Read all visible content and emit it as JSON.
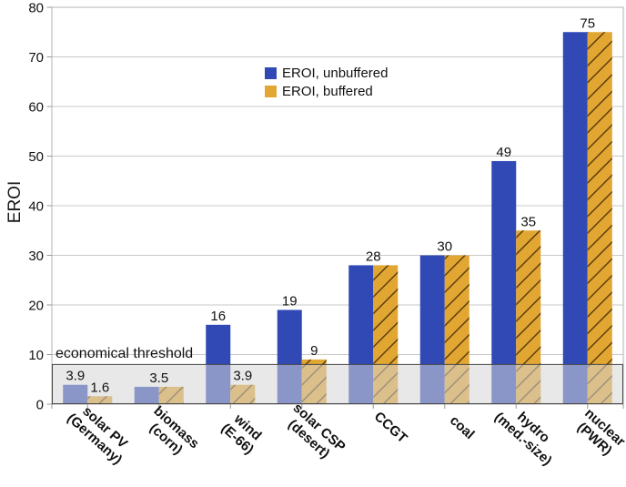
{
  "chart_data": {
    "type": "bar",
    "ylabel": "EROI",
    "ylim": [
      0,
      80
    ],
    "ytick_step": 10,
    "grid": true,
    "categories": [
      {
        "label_lines": [
          "solar PV",
          "(Germany)"
        ]
      },
      {
        "label_lines": [
          "biomass",
          "(corn)"
        ]
      },
      {
        "label_lines": [
          "wind",
          "(E-66)"
        ]
      },
      {
        "label_lines": [
          "solar CSP",
          "(desert)"
        ]
      },
      {
        "label_lines": [
          "CCGT"
        ]
      },
      {
        "label_lines": [
          "coal"
        ]
      },
      {
        "label_lines": [
          "hydro",
          "(med.-size)"
        ]
      },
      {
        "label_lines": [
          "nuclear",
          "(PWR)"
        ]
      }
    ],
    "series": [
      {
        "name": "EROI, unbuffered",
        "key": "unbuffered",
        "color": "#3049B5",
        "hatch": false,
        "values": [
          3.9,
          3.5,
          16,
          19,
          28,
          30,
          49,
          75
        ]
      },
      {
        "name": "EROI, buffered",
        "key": "buffered",
        "color": "#E2A633",
        "hatch": true,
        "hatch_color": "#54380B",
        "values": [
          1.6,
          3.5,
          3.9,
          9,
          28,
          30,
          35,
          75
        ]
      }
    ],
    "value_labels": [
      [
        {
          "text": "3.9",
          "pos": "s0"
        },
        {
          "text": "1.6",
          "pos": "s1"
        }
      ],
      [
        {
          "text": "3.5",
          "pos": "mid"
        }
      ],
      [
        {
          "text": "16",
          "pos": "s0"
        },
        {
          "text": "3.9",
          "pos": "s1"
        }
      ],
      [
        {
          "text": "19",
          "pos": "s0"
        },
        {
          "text": "9",
          "pos": "s1"
        }
      ],
      [
        {
          "text": "28",
          "pos": "mid"
        }
      ],
      [
        {
          "text": "30",
          "pos": "mid"
        }
      ],
      [
        {
          "text": "49",
          "pos": "s0"
        },
        {
          "text": "35",
          "pos": "s1"
        }
      ],
      [
        {
          "text": "75",
          "pos": "mid"
        }
      ]
    ],
    "threshold": {
      "label": "economical threshold",
      "value": 8
    },
    "legend": {
      "position": "upper-center-left",
      "entries": [
        {
          "label": "EROI, unbuffered",
          "color": "#3049B5"
        },
        {
          "label": "EROI, buffered",
          "color": "#E2A633"
        }
      ]
    },
    "style": {
      "grid_color": "#C9C9C9",
      "border_color": "#B3B3B3",
      "tick_color": "#999999",
      "band_fill": "rgba(213,213,213,0.55)",
      "band_border": "#474747",
      "text_color": "#111111"
    }
  }
}
